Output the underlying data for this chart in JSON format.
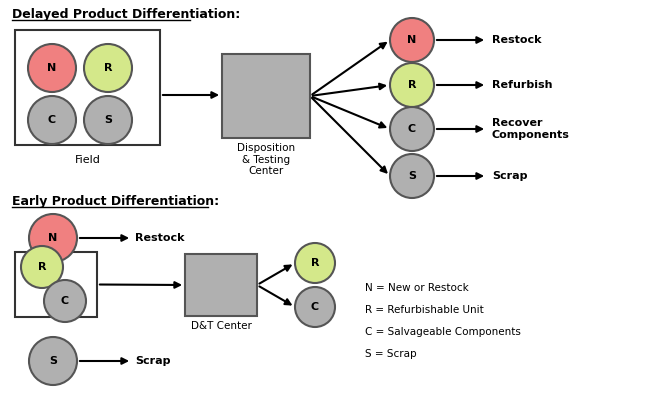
{
  "background_color": "#ffffff",
  "top_section_label": "Delayed Product Differentiation:",
  "bottom_section_label": "Early Product Differentiation:",
  "circle_N_color": "#f08080",
  "circle_R_color": "#d4e88a",
  "circle_C_color": "#b0b0b0",
  "circle_S_color": "#b0b0b0",
  "box_color": "#b0b0b0",
  "box_edge_color": "#555555",
  "field_box_color": "#ffffff",
  "field_box_edge": "#333333",
  "legend_lines": [
    "N = New or Restock",
    "R = Refurbishable Unit",
    "C = Salvageable Components",
    "S = Scrap"
  ],
  "top_output_labels": [
    "Restock",
    "Refurbish",
    "Recover\nComponents",
    "Scrap"
  ],
  "field_label": "Field",
  "disp_label": "Disposition\n& Testing\nCenter",
  "dt_label": "D&T Center",
  "restock_label": "Restock",
  "scrap_label": "Scrap"
}
